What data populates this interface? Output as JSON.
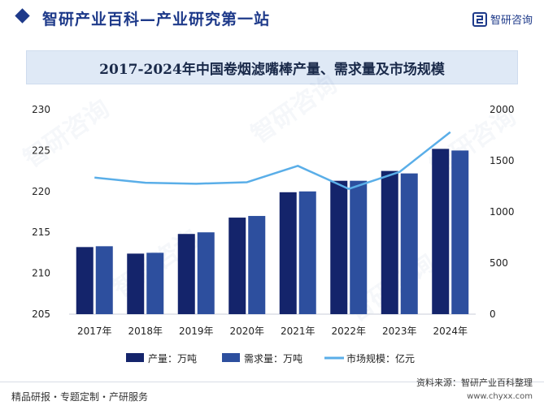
{
  "header": {
    "site_title": "智研产业百科—产业研究第一站",
    "brand_text": "智研咨询"
  },
  "watermark_text": "智研咨询",
  "chart_data": {
    "type": "bar+line",
    "title": "2017-2024年中国卷烟滤嘴棒产量、需求量及市场规模",
    "categories": [
      "2017年",
      "2018年",
      "2019年",
      "2020年",
      "2021年",
      "2022年",
      "2023年",
      "2024年"
    ],
    "series": [
      {
        "name": "产量：万吨",
        "type": "bar",
        "axis": "left",
        "color": "#14246b",
        "values": [
          213.2,
          212.4,
          214.8,
          216.8,
          219.9,
          221.3,
          222.5,
          225.2
        ]
      },
      {
        "name": "需求量：万吨",
        "type": "bar",
        "axis": "left",
        "color": "#2d4f9e",
        "values": [
          213.3,
          212.5,
          215.0,
          217.0,
          220.0,
          221.3,
          222.2,
          225.0
        ]
      },
      {
        "name": "市场规模：亿元",
        "type": "line",
        "axis": "right",
        "color": "#5aaee8",
        "values": [
          1335,
          1285,
          1275,
          1290,
          1450,
          1225,
          1390,
          1780
        ]
      }
    ],
    "y_left": {
      "min": 205,
      "max": 230,
      "ticks": [
        205,
        210,
        215,
        220,
        225,
        230
      ]
    },
    "y_right": {
      "min": 0,
      "max": 2000,
      "ticks": [
        0,
        500,
        1000,
        1500,
        2000
      ]
    },
    "legend_position": "bottom"
  },
  "footer": {
    "left_text": "精品研报・专题定制・产研服务",
    "source_text": "资料来源：智研产业百科整理",
    "url_text": "www.chyxx.com"
  }
}
